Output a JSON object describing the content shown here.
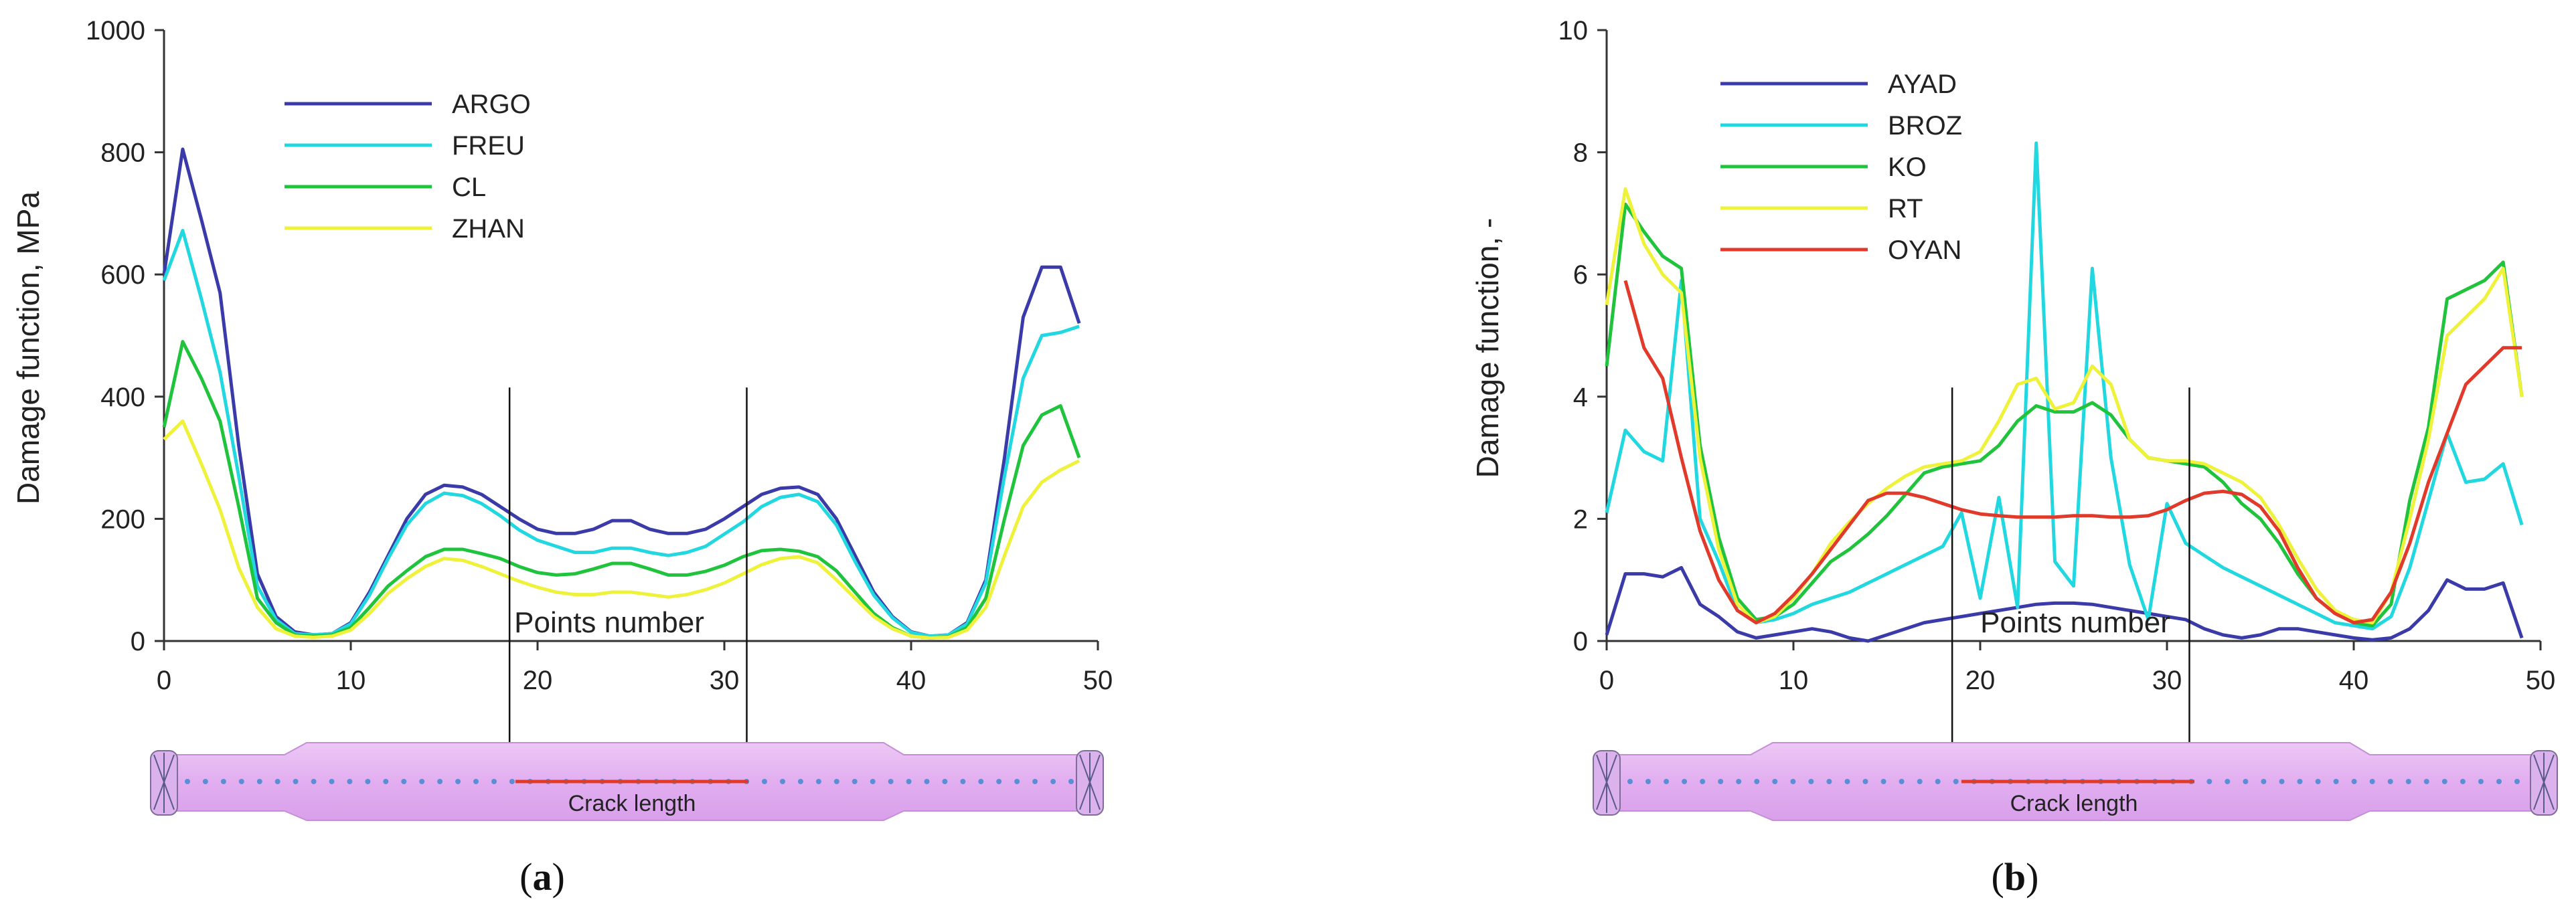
{
  "chart_data": [
    {
      "id": "a",
      "type": "line",
      "panel_label": "(a)",
      "panel_letter": "a",
      "ylabel": "Damage function, MPa",
      "xlabel_inside": "Points number",
      "crack_label": "Crack length",
      "xlim": [
        0,
        50
      ],
      "ylim": [
        0,
        1000
      ],
      "xticks": [
        0,
        10,
        20,
        30,
        40,
        50
      ],
      "yticks": [
        0,
        200,
        400,
        600,
        800,
        1000
      ],
      "crack_markers": [
        18.5,
        31.2
      ],
      "crack_marker_top": 415,
      "legend_position": "top-left",
      "series": [
        {
          "name": "ARGO",
          "color": "#3a3aa8",
          "x": [
            0,
            1,
            2,
            3,
            4,
            5,
            6,
            7,
            8,
            9,
            10,
            11,
            12,
            13,
            14,
            15,
            16,
            17,
            18,
            19,
            20,
            21,
            22,
            23,
            24,
            25,
            26,
            27,
            28,
            29,
            30,
            31,
            32,
            33,
            34,
            35,
            36,
            37,
            38,
            39,
            40,
            41,
            42,
            43,
            44,
            45,
            46,
            47,
            48,
            49
          ],
          "y": [
            600,
            805,
            690,
            570,
            320,
            110,
            40,
            15,
            10,
            12,
            30,
            80,
            140,
            200,
            240,
            255,
            252,
            240,
            220,
            200,
            183,
            176,
            176,
            183,
            197,
            197,
            183,
            176,
            176,
            183,
            200,
            220,
            240,
            250,
            252,
            240,
            200,
            140,
            80,
            40,
            15,
            8,
            10,
            30,
            100,
            300,
            530,
            612,
            612,
            520
          ]
        },
        {
          "name": "FREU",
          "color": "#22d8e0",
          "x": [
            0,
            1,
            2,
            3,
            4,
            5,
            6,
            7,
            8,
            9,
            10,
            11,
            12,
            13,
            14,
            15,
            16,
            17,
            18,
            19,
            20,
            21,
            22,
            23,
            24,
            25,
            26,
            27,
            28,
            29,
            30,
            31,
            32,
            33,
            34,
            35,
            36,
            37,
            38,
            39,
            40,
            41,
            42,
            43,
            44,
            45,
            46,
            47,
            48,
            49
          ],
          "y": [
            590,
            672,
            560,
            440,
            270,
            90,
            35,
            12,
            10,
            12,
            28,
            75,
            135,
            190,
            225,
            242,
            238,
            225,
            205,
            182,
            165,
            155,
            145,
            145,
            152,
            152,
            145,
            140,
            145,
            155,
            175,
            195,
            220,
            235,
            240,
            228,
            190,
            130,
            75,
            38,
            14,
            8,
            10,
            28,
            95,
            270,
            430,
            500,
            505,
            515
          ]
        },
        {
          "name": "CL",
          "color": "#1fc43c",
          "x": [
            0,
            1,
            2,
            3,
            4,
            5,
            6,
            7,
            8,
            9,
            10,
            11,
            12,
            13,
            14,
            15,
            16,
            17,
            18,
            19,
            20,
            21,
            22,
            23,
            24,
            25,
            26,
            27,
            28,
            29,
            30,
            31,
            32,
            33,
            34,
            35,
            36,
            37,
            38,
            39,
            40,
            41,
            42,
            43,
            44,
            45,
            46,
            47,
            48,
            49
          ],
          "y": [
            350,
            490,
            430,
            360,
            220,
            70,
            30,
            10,
            8,
            10,
            22,
            55,
            90,
            115,
            138,
            150,
            150,
            143,
            135,
            122,
            112,
            108,
            110,
            118,
            127,
            127,
            118,
            108,
            108,
            114,
            124,
            138,
            148,
            150,
            147,
            138,
            115,
            80,
            45,
            22,
            8,
            5,
            7,
            22,
            70,
            200,
            320,
            370,
            385,
            300
          ]
        },
        {
          "name": "ZHAN",
          "color": "#eef23a",
          "x": [
            0,
            1,
            2,
            3,
            4,
            5,
            6,
            7,
            8,
            9,
            10,
            11,
            12,
            13,
            14,
            15,
            16,
            17,
            18,
            19,
            20,
            21,
            22,
            23,
            24,
            25,
            26,
            27,
            28,
            29,
            30,
            31,
            32,
            33,
            34,
            35,
            36,
            37,
            38,
            39,
            40,
            41,
            42,
            43,
            44,
            45,
            46,
            47,
            48,
            49
          ],
          "y": [
            330,
            360,
            290,
            215,
            120,
            55,
            20,
            8,
            6,
            8,
            18,
            45,
            78,
            102,
            122,
            135,
            132,
            122,
            110,
            98,
            88,
            80,
            76,
            76,
            80,
            80,
            76,
            72,
            76,
            84,
            95,
            110,
            125,
            135,
            138,
            128,
            100,
            70,
            40,
            20,
            8,
            5,
            6,
            18,
            55,
            140,
            220,
            260,
            280,
            295
          ]
        }
      ]
    },
    {
      "id": "b",
      "type": "line",
      "panel_label": "(b)",
      "panel_letter": "b",
      "ylabel": "Damage function, -",
      "xlabel_inside": "Points number",
      "crack_label": "Crack length",
      "xlim": [
        0,
        50
      ],
      "ylim": [
        0,
        10
      ],
      "xticks": [
        0,
        10,
        20,
        30,
        40,
        50
      ],
      "yticks": [
        0,
        2,
        4,
        6,
        8,
        10
      ],
      "crack_markers": [
        18.5,
        31.2
      ],
      "crack_marker_top": 4.15,
      "legend_position": "top-left",
      "series": [
        {
          "name": "AYAD",
          "color": "#3a3aa8",
          "x": [
            0,
            1,
            2,
            3,
            4,
            5,
            6,
            7,
            8,
            9,
            10,
            11,
            12,
            13,
            14,
            15,
            16,
            17,
            18,
            19,
            20,
            21,
            22,
            23,
            24,
            25,
            26,
            27,
            28,
            29,
            30,
            31,
            32,
            33,
            34,
            35,
            36,
            37,
            38,
            39,
            40,
            41,
            42,
            43,
            44,
            45,
            46,
            47,
            48,
            49
          ],
          "y": [
            0.1,
            1.1,
            1.1,
            1.05,
            1.2,
            0.6,
            0.4,
            0.15,
            0.05,
            0.1,
            0.15,
            0.2,
            0.15,
            0.05,
            0.0,
            0.1,
            0.2,
            0.3,
            0.35,
            0.4,
            0.45,
            0.5,
            0.55,
            0.6,
            0.62,
            0.62,
            0.6,
            0.55,
            0.5,
            0.45,
            0.4,
            0.35,
            0.2,
            0.1,
            0.05,
            0.1,
            0.2,
            0.2,
            0.15,
            0.1,
            0.05,
            0.02,
            0.05,
            0.2,
            0.5,
            1.0,
            0.85,
            0.85,
            0.95,
            0.05
          ]
        },
        {
          "name": "BROZ",
          "color": "#22d8e0",
          "x": [
            0,
            1,
            2,
            3,
            4,
            5,
            6,
            7,
            8,
            9,
            10,
            11,
            12,
            13,
            14,
            15,
            16,
            17,
            18,
            19,
            20,
            21,
            22,
            23,
            24,
            25,
            26,
            27,
            28,
            29,
            30,
            31,
            32,
            33,
            34,
            35,
            36,
            37,
            38,
            39,
            40,
            41,
            42,
            43,
            44,
            45,
            46,
            47,
            48,
            49
          ],
          "y": [
            2.1,
            3.45,
            3.1,
            2.95,
            5.9,
            2.0,
            1.3,
            0.5,
            0.3,
            0.35,
            0.45,
            0.6,
            0.7,
            0.8,
            0.95,
            1.1,
            1.25,
            1.4,
            1.55,
            2.1,
            0.7,
            2.35,
            0.55,
            8.15,
            1.3,
            0.9,
            6.1,
            3.0,
            1.25,
            0.35,
            2.25,
            1.6,
            1.4,
            1.2,
            1.05,
            0.9,
            0.75,
            0.6,
            0.45,
            0.3,
            0.25,
            0.2,
            0.4,
            1.2,
            2.3,
            3.4,
            2.6,
            2.65,
            2.9,
            1.9
          ]
        },
        {
          "name": "KO",
          "color": "#1fc43c",
          "x": [
            0,
            1,
            2,
            3,
            4,
            5,
            6,
            7,
            8,
            9,
            10,
            11,
            12,
            13,
            14,
            15,
            16,
            17,
            18,
            19,
            20,
            21,
            22,
            23,
            24,
            25,
            26,
            27,
            28,
            29,
            30,
            31,
            32,
            33,
            34,
            35,
            36,
            37,
            38,
            39,
            40,
            41,
            42,
            43,
            44,
            45,
            46,
            47,
            48,
            49
          ],
          "y": [
            4.5,
            7.15,
            6.7,
            6.3,
            6.1,
            3.2,
            1.7,
            0.7,
            0.35,
            0.4,
            0.6,
            0.95,
            1.3,
            1.5,
            1.75,
            2.05,
            2.4,
            2.75,
            2.85,
            2.9,
            2.95,
            3.2,
            3.6,
            3.85,
            3.75,
            3.75,
            3.9,
            3.7,
            3.3,
            3.0,
            2.95,
            2.9,
            2.85,
            2.6,
            2.25,
            2.0,
            1.6,
            1.1,
            0.7,
            0.45,
            0.3,
            0.25,
            0.6,
            2.3,
            3.5,
            5.6,
            5.75,
            5.9,
            6.2,
            4.0
          ]
        },
        {
          "name": "RT",
          "color": "#eef23a",
          "x": [
            0,
            1,
            2,
            3,
            4,
            5,
            6,
            7,
            8,
            9,
            10,
            11,
            12,
            13,
            14,
            15,
            16,
            17,
            18,
            19,
            20,
            21,
            22,
            23,
            24,
            25,
            26,
            27,
            28,
            29,
            30,
            31,
            32,
            33,
            34,
            35,
            36,
            37,
            38,
            39,
            40,
            41,
            42,
            43,
            44,
            45,
            46,
            47,
            48,
            49
          ],
          "y": [
            5.5,
            7.4,
            6.5,
            6.0,
            5.7,
            3.0,
            1.5,
            0.6,
            0.3,
            0.4,
            0.7,
            1.1,
            1.6,
            1.95,
            2.25,
            2.5,
            2.7,
            2.85,
            2.9,
            2.95,
            3.1,
            3.6,
            4.2,
            4.3,
            3.8,
            3.9,
            4.5,
            4.2,
            3.3,
            3.0,
            2.95,
            2.95,
            2.9,
            2.75,
            2.6,
            2.35,
            1.9,
            1.35,
            0.85,
            0.5,
            0.35,
            0.3,
            0.8,
            2.0,
            3.3,
            5.0,
            5.3,
            5.6,
            6.1,
            4.0
          ]
        },
        {
          "name": "OYAN",
          "color": "#e23a2a",
          "x": [
            1,
            2,
            3,
            4,
            5,
            6,
            7,
            8,
            9,
            10,
            11,
            12,
            13,
            14,
            15,
            16,
            17,
            18,
            19,
            20,
            21,
            22,
            23,
            24,
            25,
            26,
            27,
            28,
            29,
            30,
            31,
            32,
            33,
            34,
            35,
            36,
            37,
            38,
            39,
            40,
            41,
            42,
            43,
            44,
            45,
            46,
            47,
            48,
            49
          ],
          "y": [
            5.9,
            4.8,
            4.3,
            3.0,
            1.8,
            1.0,
            0.5,
            0.3,
            0.45,
            0.75,
            1.1,
            1.5,
            1.9,
            2.3,
            2.42,
            2.42,
            2.35,
            2.25,
            2.15,
            2.08,
            2.05,
            2.03,
            2.03,
            2.03,
            2.05,
            2.05,
            2.03,
            2.03,
            2.05,
            2.15,
            2.3,
            2.42,
            2.45,
            2.4,
            2.2,
            1.8,
            1.2,
            0.7,
            0.45,
            0.3,
            0.35,
            0.8,
            1.6,
            2.6,
            3.4,
            4.2,
            4.5,
            4.8,
            4.8
          ]
        }
      ]
    }
  ]
}
